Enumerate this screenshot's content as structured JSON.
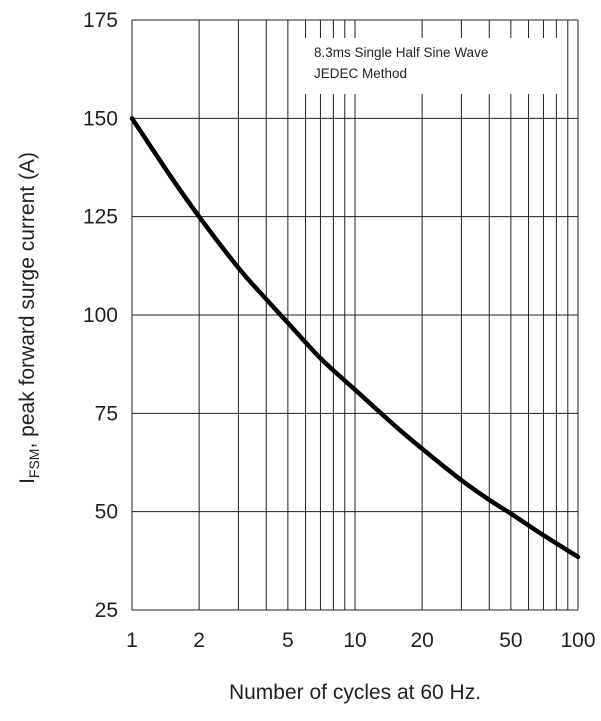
{
  "chart_data": {
    "type": "line",
    "xscale": "log",
    "xlim": [
      1,
      100
    ],
    "ylim": [
      25,
      175
    ],
    "xticks": [
      1,
      2,
      5,
      10,
      20,
      50,
      100
    ],
    "yticks": [
      25,
      50,
      75,
      100,
      125,
      150,
      175
    ],
    "x_minor_gridlines": [
      3,
      4,
      6,
      7,
      8,
      9,
      30,
      40,
      60,
      70,
      80,
      90
    ],
    "grid": true,
    "ylabel_prefix": "I",
    "ylabel_subscript": "FSM",
    "ylabel_suffix": ", peak forward surge current (A)",
    "xlabel": "Number of cycles at 60 Hz.",
    "annotation_lines": [
      "8.3ms Single Half Sine Wave",
      "JEDEC Method"
    ],
    "series": [
      {
        "x": [
          1,
          1.5,
          2,
          3,
          4,
          5,
          7,
          10,
          15,
          20,
          30,
          40,
          50,
          70,
          100
        ],
        "y": [
          150,
          135,
          125,
          112,
          104,
          98,
          89,
          81,
          72,
          66,
          58,
          53,
          49.5,
          44,
          38.5
        ]
      }
    ]
  }
}
